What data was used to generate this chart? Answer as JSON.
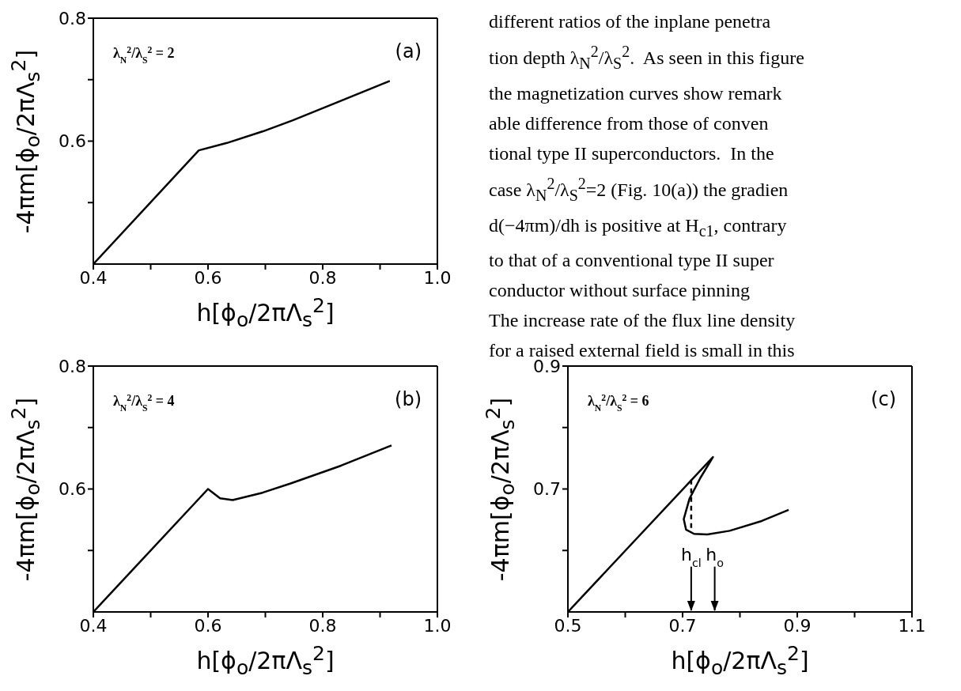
{
  "chart_data": [
    {
      "type": "line",
      "xlabel": "h[ϕ$_{o}$/2πΛ$_{s}$$^{2}$]",
      "ylabel": "-4πm[ϕ$_{o}$/2πΛ$_{s}$$^{2}$]",
      "annotations": [
        "λ$_{N}$$^{2}$/λ$_{S}$$^{2}$ = 2",
        "(a)"
      ],
      "xlim": [
        0.4,
        1.0
      ],
      "xticks": [
        {
          "value": 0.4,
          "label": "0.4"
        },
        {
          "value": 0.5,
          "label": null
        },
        {
          "value": 0.6,
          "label": "0.6"
        },
        {
          "value": 0.7,
          "label": null
        },
        {
          "value": 0.8,
          "label": "0.8"
        },
        {
          "value": 0.9,
          "label": null
        },
        {
          "value": 1.0,
          "label": "1.0"
        }
      ],
      "ylim": [
        0.4,
        0.8
      ],
      "yticks": [
        {
          "value": 0.5,
          "label": null
        },
        {
          "value": 0.6,
          "label": "0.6"
        },
        {
          "value": 0.7,
          "label": null
        },
        {
          "value": 0.8,
          "label": "0.8"
        }
      ],
      "series": [
        {
          "color": "#000000",
          "x": [
            0.4,
            0.584,
            0.633,
            0.696,
            0.748,
            0.822,
            0.917
          ],
          "values": [
            0.4,
            0.585,
            0.597,
            0.616,
            0.634,
            0.662,
            0.698
          ]
        }
      ]
    },
    {
      "type": "other",
      "annotations": [
        "different ratios of the inplane penetra",
        "tion depth λ$_{N}$$^{2}$/λ$_{S}$$^{2}$.  As seen in this figure",
        "the magnetization curves show remark",
        "able difference from those of conven",
        "tional type II superconductors.  In the",
        "case λ$_{N}$$^{2}$/λ$_{S}$$^{2}$=2 (Fig. 10(a)) the gradien",
        "d(−4πm)/dh is positive at H$_{c1}$, contrary",
        "to that of a conventional type II super",
        "conductor without surface pinning",
        "The increase rate of the flux line density",
        "for a raised external field is small in this"
      ]
    },
    {
      "type": "line",
      "xlabel": "h[ϕ$_{o}$/2πΛ$_{s}$$^{2}$]",
      "ylabel": "-4πm[ϕ$_{o}$/2πΛ$_{s}$$^{2}$]",
      "annotations": [
        "λ$_{N}$$^{2}$/λ$_{S}$$^{2}$ = 4",
        "(b)"
      ],
      "xlim": [
        0.4,
        1.0
      ],
      "xticks": [
        {
          "value": 0.4,
          "label": "0.4"
        },
        {
          "value": 0.5,
          "label": null
        },
        {
          "value": 0.6,
          "label": "0.6"
        },
        {
          "value": 0.7,
          "label": null
        },
        {
          "value": 0.8,
          "label": "0.8"
        },
        {
          "value": 0.9,
          "label": null
        },
        {
          "value": 1.0,
          "label": "1.0"
        }
      ],
      "ylim": [
        0.4,
        0.8
      ],
      "yticks": [
        {
          "value": 0.5,
          "label": null
        },
        {
          "value": 0.6,
          "label": "0.6"
        },
        {
          "value": 0.7,
          "label": null
        },
        {
          "value": 0.8,
          "label": "0.8"
        }
      ],
      "series": [
        {
          "color": "#000000",
          "x": [
            0.4,
            0.477,
            0.6,
            0.621,
            0.643,
            0.695,
            0.744,
            0.832,
            0.92
          ],
          "values": [
            0.4,
            0.477,
            0.6,
            0.585,
            0.582,
            0.594,
            0.609,
            0.638,
            0.671
          ]
        }
      ]
    },
    {
      "type": "line",
      "xlabel": "h[ϕ$_{o}$/2πΛ$_{s}$$^{2}$]",
      "ylabel": "-4πm[ϕ$_{o}$/2πΛ$_{s}$$^{2}$]",
      "annotations": [
        "λ$_{N}$$^{2}$/λ$_{S}$$^{2}$ = 6",
        "(c)"
      ],
      "ref_lines": [
        {
          "axis": "x",
          "value": 0.715,
          "label": "h$_{cl}$"
        },
        {
          "axis": "x",
          "value": 0.756,
          "label": "h$_{o}$"
        }
      ],
      "xlim": [
        0.5,
        1.1
      ],
      "xticks": [
        0.5,
        {
          "value": 0.6,
          "label": null
        },
        0.7,
        {
          "value": 0.8,
          "label": null
        },
        0.9,
        {
          "value": 1.0,
          "label": null
        },
        1.1
      ],
      "ylim": [
        0.5,
        0.9
      ],
      "yticks": [
        {
          "value": 0.6,
          "label": null
        },
        0.7,
        {
          "value": 0.8,
          "label": null
        },
        0.9
      ],
      "series": [
        {
          "color": "#000000",
          "x": [
            0.5,
            0.753,
            0.731,
            0.712,
            0.702,
            0.706,
            0.72,
            0.743,
            0.782,
            0.838,
            0.885
          ],
          "values": [
            0.5,
            0.752,
            0.718,
            0.684,
            0.651,
            0.634,
            0.627,
            0.626,
            0.632,
            0.648,
            0.666
          ]
        },
        {
          "color": "#000000",
          "line_style": "dashed",
          "x": [
            0.715,
            0.715
          ],
          "values": [
            0.715,
            0.629
          ]
        }
      ]
    }
  ]
}
